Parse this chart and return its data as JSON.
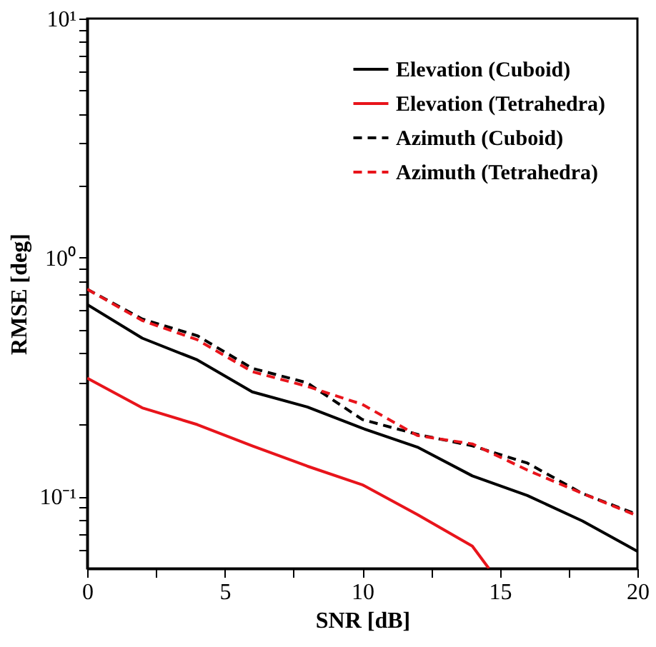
{
  "chart_data": {
    "type": "line",
    "xlabel": "SNR [dB]",
    "ylabel": "RMSE [deg]",
    "log": "y",
    "xlim": [
      0,
      20
    ],
    "xticks": [
      0,
      {
        "value": 2.5,
        "label": null
      },
      5,
      {
        "value": 7.5,
        "label": null
      },
      10,
      {
        "value": 12.5,
        "label": null
      },
      15,
      {
        "value": 17.5,
        "label": null
      },
      20
    ],
    "ylim": [
      0.05,
      10
    ],
    "yticks": [
      {
        "value": 0.06,
        "label": null
      },
      {
        "value": 0.07,
        "label": null
      },
      {
        "value": 0.08,
        "label": null
      },
      {
        "value": 0.09,
        "label": null
      },
      {
        "value": 0.1,
        "label": "10⁻¹"
      },
      {
        "value": 0.2,
        "label": null
      },
      {
        "value": 0.3,
        "label": null
      },
      {
        "value": 0.4,
        "label": null
      },
      {
        "value": 0.5,
        "label": null
      },
      {
        "value": 0.6,
        "label": null
      },
      {
        "value": 0.7,
        "label": null
      },
      {
        "value": 0.8,
        "label": null
      },
      {
        "value": 0.9,
        "label": null
      },
      {
        "value": 1,
        "label": "10⁰"
      },
      {
        "value": 2,
        "label": null
      },
      {
        "value": 3,
        "label": null
      },
      {
        "value": 4,
        "label": null
      },
      {
        "value": 5,
        "label": null
      },
      {
        "value": 6,
        "label": null
      },
      {
        "value": 7,
        "label": null
      },
      {
        "value": 8,
        "label": null
      },
      {
        "value": 9,
        "label": null
      },
      {
        "value": 10,
        "label": "10¹"
      }
    ],
    "grid": false,
    "legend": "top right",
    "marker": "none",
    "x": [
      0,
      2,
      4,
      6,
      8,
      10,
      12,
      14,
      16,
      18,
      20
    ],
    "series": [
      {
        "name": "Elevation (Cuboid)",
        "color": "#000000",
        "line_style": "solid",
        "values": [
          0.636,
          0.46,
          0.373,
          0.274,
          0.237,
          0.193,
          0.161,
          0.122,
          0.101,
          0.079,
          0.059
        ]
      },
      {
        "name": "Elevation (Tetrahedra)",
        "color": "#e8141b",
        "line_style": "solid",
        "x": [
          0,
          2,
          4,
          6,
          8,
          10,
          12,
          14,
          14.6
        ],
        "values": [
          0.313,
          0.235,
          0.2,
          0.163,
          0.134,
          0.112,
          0.084,
          0.062,
          0.05
        ]
      },
      {
        "name": "Azimuth (Cuboid)",
        "color": "#000000",
        "line_style": "dashed",
        "values": [
          0.737,
          0.553,
          0.471,
          0.344,
          0.299,
          0.21,
          0.182,
          0.163,
          0.138,
          0.103,
          0.084
        ]
      },
      {
        "name": "Azimuth (Tetrahedra)",
        "color": "#e8141b",
        "line_style": "dashed",
        "values": [
          0.737,
          0.545,
          0.453,
          0.333,
          0.289,
          0.243,
          0.18,
          0.166,
          0.129,
          0.103,
          0.083
        ]
      }
    ]
  }
}
